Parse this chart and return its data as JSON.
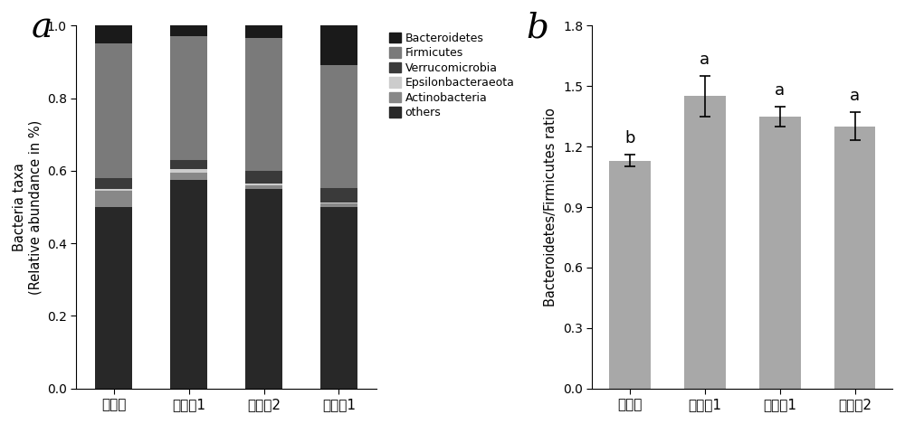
{
  "categories_left": [
    "对照组",
    "对比例1",
    "对比例2",
    "实施例1"
  ],
  "stack_data": {
    "others": [
      0.5,
      0.575,
      0.55,
      0.5
    ],
    "Actinobacteria": [
      0.045,
      0.02,
      0.01,
      0.01
    ],
    "Epsilonbacteraeota": [
      0.005,
      0.01,
      0.005,
      0.003
    ],
    "Verrucomicrobia": [
      0.03,
      0.025,
      0.035,
      0.04
    ],
    "Firmicutes": [
      0.37,
      0.34,
      0.365,
      0.337
    ],
    "Bacteroidetes": [
      0.05,
      0.03,
      0.035,
      0.11
    ]
  },
  "stack_colors": {
    "others": "#282828",
    "Actinobacteria": "#888888",
    "Epsilonbacteraeota": "#cccccc",
    "Verrucomicrobia": "#3a3a3a",
    "Firmicutes": "#7a7a7a",
    "Bacteroidetes": "#1a1a1a"
  },
  "stack_order": [
    "others",
    "Actinobacteria",
    "Epsilonbacteraeota",
    "Verrucomicrobia",
    "Firmicutes",
    "Bacteroidetes"
  ],
  "legend_order": [
    "Bacteroidetes",
    "Firmicutes",
    "Verrucomicrobia",
    "Epsilonbacteraeota",
    "Actinobacteria",
    "others"
  ],
  "left_ylabel": "Bacteria taxa\n(Relative abundance in %)",
  "left_ylim": [
    0,
    1.0
  ],
  "left_yticks": [
    0,
    0.2,
    0.4,
    0.6,
    0.8,
    1.0
  ],
  "panel_a_label": "a",
  "panel_b_label": "b",
  "categories_right": [
    "对照组",
    "实施例1",
    "对比例1",
    "对比例2"
  ],
  "bar_values": [
    1.13,
    1.45,
    1.35,
    1.3
  ],
  "bar_errors": [
    0.03,
    0.1,
    0.05,
    0.07
  ],
  "bar_color": "#a8a8a8",
  "bar_labels": [
    "b",
    "a",
    "a",
    "a"
  ],
  "right_ylabel": "Bacteroidetes/Firmicutes ratio",
  "right_ylim": [
    0,
    1.8
  ],
  "right_yticks": [
    0.0,
    0.3,
    0.6,
    0.9,
    1.2,
    1.5,
    1.8
  ],
  "background_color": "#ffffff"
}
